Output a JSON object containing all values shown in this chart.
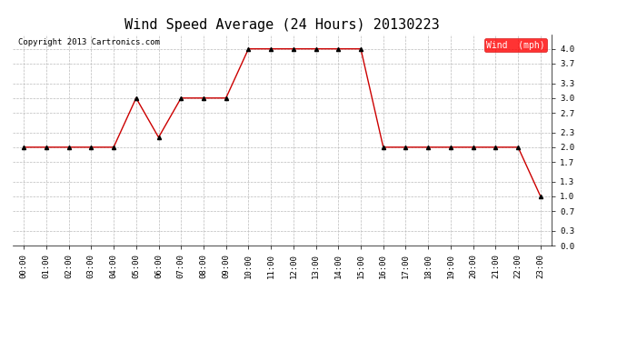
{
  "title": "Wind Speed Average (24 Hours) 20130223",
  "copyright_text": "Copyright 2013 Cartronics.com",
  "legend_label": "Wind  (mph)",
  "legend_bg": "#ff0000",
  "legend_fg": "#ffffff",
  "hours": [
    "00:00",
    "01:00",
    "02:00",
    "03:00",
    "04:00",
    "05:00",
    "06:00",
    "07:00",
    "08:00",
    "09:00",
    "10:00",
    "11:00",
    "12:00",
    "13:00",
    "14:00",
    "15:00",
    "16:00",
    "17:00",
    "18:00",
    "19:00",
    "20:00",
    "21:00",
    "22:00",
    "23:00"
  ],
  "wind_values": [
    2.0,
    2.0,
    2.0,
    2.0,
    2.0,
    3.0,
    2.2,
    3.0,
    3.0,
    3.0,
    4.0,
    4.0,
    4.0,
    4.0,
    4.0,
    4.0,
    2.0,
    2.0,
    2.0,
    2.0,
    2.0,
    2.0,
    2.0,
    1.0
  ],
  "line_color": "#cc0000",
  "marker": "^",
  "marker_color": "#000000",
  "marker_size": 3,
  "ylim": [
    0.0,
    4.3
  ],
  "yticks": [
    0.0,
    0.3,
    0.7,
    1.0,
    1.3,
    1.7,
    2.0,
    2.3,
    2.7,
    3.0,
    3.3,
    3.7,
    4.0
  ],
  "bg_color": "#ffffff",
  "plot_bg": "#ffffff",
  "grid_color": "#bbbbbb",
  "title_fontsize": 11,
  "tick_fontsize": 6.5,
  "copyright_fontsize": 6.5,
  "legend_fontsize": 7
}
